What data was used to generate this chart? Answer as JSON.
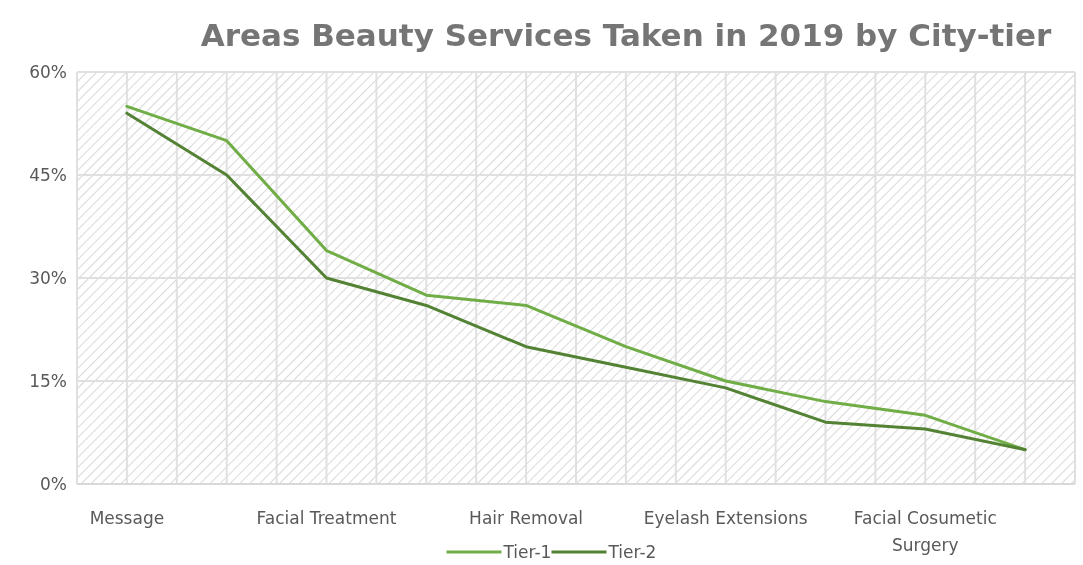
{
  "chart_data": {
    "type": "line",
    "title": "Areas Beauty Services Taken in 2019 by City-tier",
    "categories": [
      "Message",
      null,
      "Facial Treatment",
      null,
      "Hair Removal",
      null,
      "Eyelash Extensions",
      null,
      "Facial Cosumetic Surgery",
      null
    ],
    "series": [
      {
        "name": "Tier-1",
        "color": "#70ad47",
        "values": [
          55,
          50,
          34,
          27.5,
          26,
          20,
          15,
          12,
          10,
          5
        ]
      },
      {
        "name": "Tier-2",
        "color": "#548235",
        "values": [
          54,
          45,
          30,
          26,
          20,
          17,
          14,
          9,
          8,
          5
        ]
      }
    ],
    "ylim": [
      0,
      60
    ],
    "yticks": [
      {
        "value": 0,
        "label": "0%"
      },
      {
        "value": 15,
        "label": "15%"
      },
      {
        "value": 30,
        "label": "30%"
      },
      {
        "value": 45,
        "label": "45%"
      },
      {
        "value": 60,
        "label": "60%"
      }
    ],
    "grid": true,
    "legend": "bottom",
    "marker": "none",
    "line_style": "solid"
  }
}
